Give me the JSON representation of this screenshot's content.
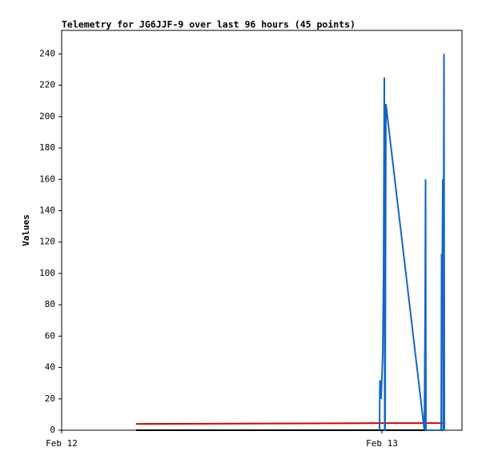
{
  "chart_data": {
    "type": "line",
    "title": "Telemetry for JG6JJF-9 over last 96 hours (45 points)",
    "y_label": "Values",
    "xlim": [
      0,
      30
    ],
    "xticks": [
      {
        "value": 0,
        "label": "Feb 12"
      },
      {
        "value": 24,
        "label": "Feb 13"
      }
    ],
    "ylim": [
      0,
      255
    ],
    "yticks": [
      0,
      20,
      40,
      60,
      80,
      100,
      120,
      140,
      160,
      180,
      200,
      220,
      240
    ],
    "grid": false,
    "series": [
      {
        "color": "#000000",
        "x": [
          5.58,
          28.56
        ],
        "values": [
          0,
          0
        ]
      },
      {
        "color": "#e00000",
        "x": [
          5.58,
          24.0,
          28.56
        ],
        "values": [
          4,
          4.5,
          4.5
        ]
      },
      {
        "color": "#1565c8",
        "x": [
          23.82,
          23.85,
          23.94,
          24.06,
          24.12,
          24.18,
          24.21,
          24.24,
          24.3,
          27.18,
          27.24,
          27.27,
          27.3,
          28.44,
          28.47,
          28.53,
          28.56,
          28.59,
          28.65,
          28.68
        ],
        "values": [
          0,
          32,
          20,
          48,
          97,
          225,
          0,
          0,
          208,
          0,
          80,
          160,
          0,
          0,
          112,
          112,
          160,
          0,
          240,
          0
        ]
      }
    ]
  }
}
